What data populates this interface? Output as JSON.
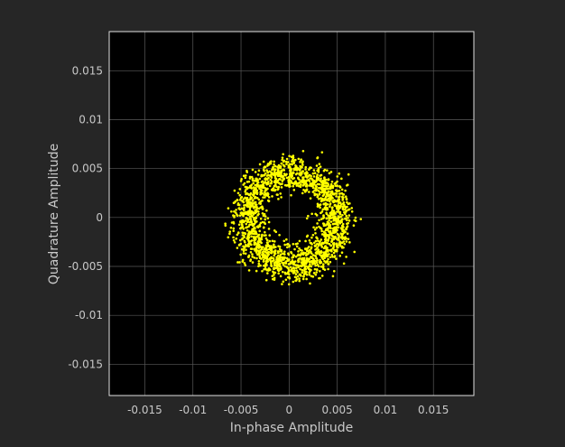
{
  "colors": {
    "figure_background": "#262626",
    "plot_background": "#000000",
    "grid": "#5a5a5a",
    "axes_border": "#e0e0e0",
    "text": "#c8c8c8",
    "points": "#ffff00"
  },
  "chart_data": {
    "type": "scatter",
    "title": "",
    "xlabel": "In-phase Amplitude",
    "ylabel": "Quadrature Amplitude",
    "xlim": [
      -0.0187,
      0.0192
    ],
    "ylim": [
      -0.0182,
      0.019
    ],
    "grid": true,
    "legend": "none",
    "x_ticks": [
      -0.015,
      -0.01,
      -0.005,
      0,
      0.005,
      0.01,
      0.015
    ],
    "x_tick_labels": [
      "-0.015",
      "-0.01",
      "-0.005",
      "0",
      "0.005",
      "0.01",
      "0.015"
    ],
    "y_ticks": [
      0.015,
      0.01,
      0.005,
      0,
      -0.005,
      -0.01,
      -0.015
    ],
    "y_tick_labels": [
      "0.015",
      "0.01",
      "0.005",
      "0",
      "-0.005",
      "-0.01",
      "-0.015"
    ],
    "series": [
      {
        "marker_color": "#ffff00",
        "distribution": {
          "shape": "ring",
          "center": [
            0.0003,
            -0.0002
          ],
          "mean_radius": 0.0047,
          "radius_std": 0.0009,
          "point_count": 2000
        }
      }
    ]
  }
}
